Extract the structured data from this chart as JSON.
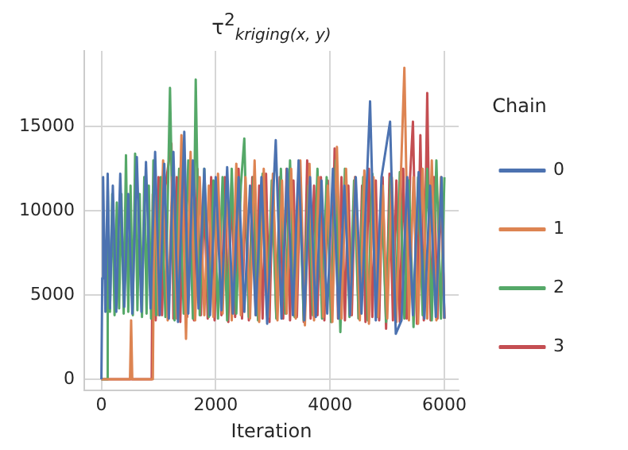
{
  "chart_data": {
    "type": "line",
    "title": "τ$^{2}$$_{kriging(x, y)}$",
    "xlabel": "Iteration",
    "legend_title": "Chain",
    "legend": "right",
    "grid": true,
    "marker": "none",
    "line_style": "solid",
    "xlim": [
      -300,
      6250
    ],
    "xticks": [
      0,
      2000,
      4000,
      6000
    ],
    "ylim": [
      -650,
      19500
    ],
    "yticks": [
      0,
      5000,
      10000,
      15000
    ],
    "series": [
      {
        "name": "0",
        "color": "#4c72b0",
        "x": [
          0,
          15,
          30,
          70,
          110,
          150,
          200,
          260,
          330,
          400,
          470,
          540,
          620,
          700,
          780,
          860,
          940,
          1020,
          1100,
          1180,
          1260,
          1340,
          1450,
          1520,
          1600,
          1700,
          1800,
          1900,
          2000,
          2100,
          2200,
          2300,
          2400,
          2500,
          2600,
          2700,
          2800,
          2900,
          3050,
          3150,
          3250,
          3350,
          3450,
          3550,
          3650,
          3750,
          3850,
          3950,
          4050,
          4150,
          4250,
          4350,
          4450,
          4550,
          4700,
          4800,
          4900,
          5050,
          5150,
          5250,
          5350,
          5450,
          5550,
          5650,
          5750,
          5850,
          5950,
          6000
        ],
        "values": [
          0,
          6000,
          12000,
          4000,
          12200,
          4200,
          11500,
          4000,
          12200,
          4300,
          11000,
          3900,
          13200,
          4000,
          12900,
          4200,
          13500,
          3800,
          12800,
          3600,
          13500,
          3400,
          14700,
          3900,
          13000,
          4200,
          12500,
          3800,
          12000,
          4100,
          12600,
          3900,
          12000,
          4000,
          11500,
          3800,
          12000,
          3300,
          14200,
          3600,
          12500,
          3800,
          13000,
          3500,
          12000,
          3700,
          11800,
          3900,
          12500,
          3600,
          11500,
          3800,
          12000,
          3900,
          16500,
          3500,
          12000,
          15300,
          2700,
          3500,
          12000,
          3800,
          12300,
          3600,
          11500,
          3700,
          12000,
          3600
        ]
      },
      {
        "name": "1",
        "color": "#dd8452",
        "x": [
          0,
          500,
          520,
          540,
          900,
          930,
          1000,
          1080,
          1160,
          1240,
          1320,
          1400,
          1480,
          1560,
          1640,
          1720,
          1800,
          1880,
          1960,
          2040,
          2120,
          2200,
          2280,
          2360,
          2440,
          2520,
          2600,
          2680,
          2760,
          2840,
          2920,
          3000,
          3080,
          3160,
          3240,
          3320,
          3400,
          3480,
          3560,
          3640,
          3720,
          3800,
          3880,
          3960,
          4040,
          4120,
          4200,
          4280,
          4360,
          4440,
          4520,
          4600,
          4680,
          4760,
          4840,
          4920,
          5000,
          5080,
          5160,
          5240,
          5300,
          5380,
          5460,
          5540,
          5620,
          5700,
          5780,
          5860,
          5940,
          6000
        ],
        "values": [
          0,
          0,
          3500,
          0,
          0,
          12500,
          3800,
          13000,
          3500,
          12000,
          3600,
          14500,
          2400,
          13500,
          3500,
          12000,
          3800,
          11500,
          3700,
          12200,
          3900,
          11800,
          3500,
          12800,
          3800,
          12000,
          3600,
          13000,
          3400,
          12500,
          3700,
          12200,
          3500,
          11800,
          3900,
          12500,
          3600,
          13000,
          3200,
          12800,
          3500,
          12000,
          3700,
          11500,
          3400,
          13800,
          3600,
          12500,
          3800,
          12000,
          3500,
          12400,
          3300,
          12000,
          3700,
          11500,
          3600,
          12000,
          3400,
          12200,
          18500,
          3500,
          12000,
          3300,
          12500,
          3600,
          13000,
          3500,
          12000,
          3600
        ]
      },
      {
        "name": "2",
        "color": "#55a868",
        "x": [
          0,
          90,
          110,
          150,
          190,
          230,
          270,
          310,
          350,
          390,
          430,
          470,
          510,
          550,
          590,
          630,
          670,
          710,
          750,
          790,
          830,
          870,
          910,
          960,
          1040,
          1120,
          1200,
          1280,
          1360,
          1440,
          1520,
          1600,
          1650,
          1720,
          1800,
          1880,
          1960,
          2040,
          2120,
          2200,
          2280,
          2360,
          2440,
          2500,
          2580,
          2660,
          2740,
          2820,
          2900,
          2980,
          3060,
          3140,
          3220,
          3300,
          3380,
          3460,
          3540,
          3620,
          3700,
          3780,
          3860,
          3940,
          4020,
          4100,
          4180,
          4260,
          4340,
          4420,
          4500,
          4580,
          4660,
          4740,
          4820,
          4900,
          4980,
          5060,
          5140,
          5220,
          5300,
          5380,
          5460,
          5540,
          5620,
          5700,
          5780,
          5860,
          5940,
          6000
        ],
        "values": [
          0,
          0,
          11500,
          4000,
          11000,
          3800,
          10500,
          4200,
          11000,
          3900,
          13300,
          4000,
          11500,
          3800,
          13400,
          4100,
          11000,
          3700,
          12000,
          3900,
          11500,
          3600,
          13000,
          3800,
          12000,
          3700,
          17300,
          3500,
          12500,
          3900,
          13000,
          3600,
          17800,
          3800,
          12500,
          3700,
          11800,
          3600,
          12000,
          3500,
          12500,
          3900,
          11500,
          14300,
          3700,
          12000,
          3500,
          12200,
          3800,
          11800,
          3600,
          12500,
          3900,
          13000,
          3700,
          12000,
          3500,
          11500,
          3800,
          12500,
          3600,
          12000,
          3400,
          13000,
          2800,
          12500,
          3700,
          11800,
          3600,
          12000,
          3500,
          12200,
          3700,
          11500,
          3400,
          12000,
          3700,
          12300,
          3600,
          11800,
          3100,
          12000,
          3800,
          12500,
          3500,
          13000,
          3600,
          12000
        ]
      },
      {
        "name": "3",
        "color": "#c44e52",
        "x": [
          0,
          880,
          900,
          950,
          1000,
          1060,
          1120,
          1225,
          1260,
          1320,
          1380,
          1440,
          1500,
          1560,
          1620,
          1680,
          1740,
          1800,
          1860,
          1920,
          1980,
          2040,
          2100,
          2160,
          2220,
          2280,
          2340,
          2400,
          2460,
          2520,
          2580,
          2640,
          2700,
          2760,
          2820,
          2880,
          2940,
          3000,
          3060,
          3120,
          3180,
          3240,
          3300,
          3360,
          3420,
          3480,
          3540,
          3600,
          3660,
          3720,
          3780,
          3840,
          3900,
          3960,
          4020,
          4080,
          4140,
          4200,
          4260,
          4320,
          4380,
          4440,
          4500,
          4560,
          4620,
          4680,
          4740,
          4800,
          4860,
          4920,
          4980,
          5040,
          5100,
          5160,
          5220,
          5280,
          5340,
          5400,
          5450,
          5520,
          5580,
          5640,
          5700,
          5760,
          5820,
          5880,
          5940,
          6000
        ],
        "values": [
          0,
          0,
          11000,
          3500,
          12000,
          3800,
          11500,
          14000,
          3600,
          12000,
          3400,
          13000,
          3700,
          11800,
          3500,
          12500,
          3800,
          11000,
          3600,
          12000,
          3500,
          11500,
          3800,
          12000,
          3400,
          11800,
          3700,
          12500,
          3600,
          11000,
          3500,
          12000,
          3800,
          11500,
          3600,
          12200,
          3400,
          11800,
          3700,
          12000,
          3600,
          12500,
          3500,
          11800,
          3700,
          12000,
          3400,
          13000,
          3600,
          11500,
          3800,
          12000,
          3500,
          11800,
          3400,
          13700,
          3600,
          12000,
          3500,
          11500,
          3800,
          12000,
          3600,
          11500,
          3400,
          12500,
          3700,
          11800,
          3500,
          12000,
          3000,
          12200,
          3500,
          11800,
          3400,
          12500,
          3600,
          12000,
          15300,
          3300,
          14500,
          3500,
          17000,
          3500,
          12000,
          3600,
          11500,
          3600
        ]
      }
    ]
  }
}
